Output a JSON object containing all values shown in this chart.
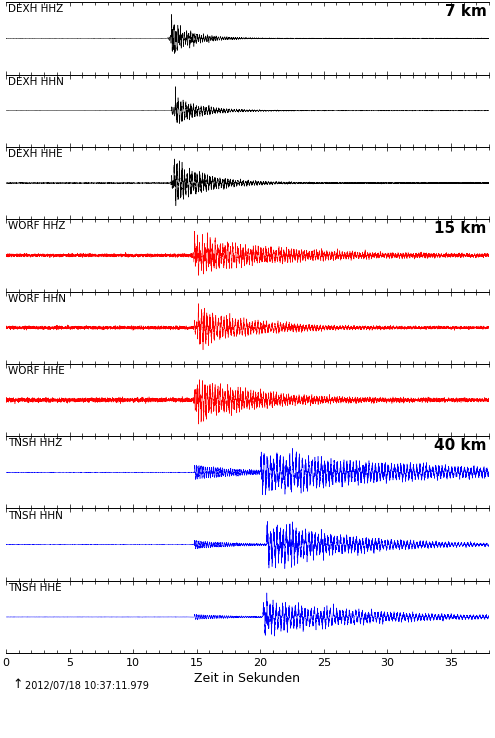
{
  "title": "",
  "xlabel": "Zeit in Sekunden",
  "timestamp": "2012/07/18 10:37:11.979",
  "xlim": [
    0,
    38
  ],
  "xticks": [
    0,
    5,
    10,
    15,
    20,
    25,
    30,
    35
  ],
  "channels": [
    {
      "label": "DEXH HHZ",
      "color": "#000000",
      "group": 0,
      "distance_label": "7 km"
    },
    {
      "label": "DEXH HHN",
      "color": "#000000",
      "group": 0,
      "distance_label": ""
    },
    {
      "label": "DEXH HHE",
      "color": "#000000",
      "group": 0,
      "distance_label": ""
    },
    {
      "label": "WORF HHZ",
      "color": "#ff0000",
      "group": 1,
      "distance_label": "15 km"
    },
    {
      "label": "WORF HHN",
      "color": "#ff0000",
      "group": 1,
      "distance_label": ""
    },
    {
      "label": "WORF HHE",
      "color": "#ff0000",
      "group": 1,
      "distance_label": ""
    },
    {
      "label": "TNSH HHZ",
      "color": "#0000ff",
      "group": 2,
      "distance_label": "40 km"
    },
    {
      "label": "TNSH HHN",
      "color": "#0000ff",
      "group": 2,
      "distance_label": ""
    },
    {
      "label": "TNSH HHE",
      "color": "#0000ff",
      "group": 2,
      "distance_label": ""
    }
  ],
  "bg_color": "#ffffff",
  "label_fontsize": 7.5,
  "dist_fontsize": 11,
  "tick_fontsize": 8
}
